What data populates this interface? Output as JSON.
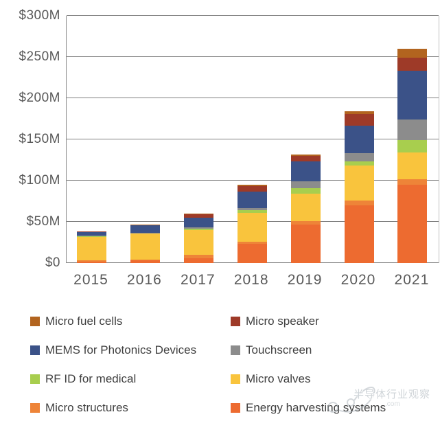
{
  "chart_data": {
    "type": "bar",
    "stacked": true,
    "title": "",
    "xlabel": "",
    "ylabel": "",
    "unit": "$M",
    "categories": [
      "2015",
      "2016",
      "2017",
      "2018",
      "2019",
      "2020",
      "2021"
    ],
    "ylim": [
      0,
      300
    ],
    "yticks": [
      {
        "value": 0,
        "label": "$0"
      },
      {
        "value": 50,
        "label": "$50M"
      },
      {
        "value": 100,
        "label": "$100M"
      },
      {
        "value": 150,
        "label": "$150M"
      },
      {
        "value": 200,
        "label": "$200M"
      },
      {
        "value": 250,
        "label": "$250M"
      },
      {
        "value": 300,
        "label": "$300M"
      }
    ],
    "grid": true,
    "stack_order_bottom_to_top": [
      "Energy harvesting systems",
      "Micro structures",
      "Micro valves",
      "RF ID for medical",
      "Touchscreen",
      "MEMS for Photonics Devices",
      "Micro speaker",
      "Micro fuel cells"
    ],
    "series": [
      {
        "name": "Energy harvesting systems",
        "color": "#ED6B30",
        "values": [
          2,
          3,
          6,
          23,
          47,
          70,
          95
        ]
      },
      {
        "name": "Micro structures",
        "color": "#EE8438",
        "values": [
          1,
          1,
          4,
          3,
          4,
          6,
          7
        ]
      },
      {
        "name": "Micro valves",
        "color": "#F9C43D",
        "values": [
          29,
          32,
          30,
          35,
          33,
          42,
          32
        ]
      },
      {
        "name": "RF ID for medical",
        "color": "#A8CE4E",
        "values": [
          0.5,
          0.5,
          2,
          3,
          7,
          5,
          15
        ]
      },
      {
        "name": "Touchscreen",
        "color": "#8C8C8C",
        "values": [
          0.5,
          0.5,
          1,
          3,
          8,
          10,
          25
        ]
      },
      {
        "name": "MEMS for Photonics Devices",
        "color": "#3B5288",
        "values": [
          4.5,
          9,
          12,
          20,
          24,
          34,
          59
        ]
      },
      {
        "name": "Micro speaker",
        "color": "#9E3A28",
        "values": [
          0.5,
          0.5,
          4,
          6,
          7,
          14,
          16
        ]
      },
      {
        "name": "Micro fuel cells",
        "color": "#B2641F",
        "values": [
          0,
          0.5,
          1,
          2,
          2,
          3,
          11
        ]
      }
    ],
    "totals": [
      38,
      47,
      60,
      95,
      132,
      184,
      260
    ],
    "legend_position": "bottom"
  },
  "legend": {
    "items": [
      {
        "label": "Micro fuel cells",
        "color": "#B2641F"
      },
      {
        "label": "Micro speaker",
        "color": "#9E3A28"
      },
      {
        "label": "MEMS for Photonics Devices",
        "color": "#3B5288"
      },
      {
        "label": "Touchscreen",
        "color": "#8C8C8C"
      },
      {
        "label": "RF ID for medical",
        "color": "#A8CE4E"
      },
      {
        "label": "Micro valves",
        "color": "#F9C43D"
      },
      {
        "label": "Micro structures",
        "color": "#EE8438"
      },
      {
        "label": "Energy harvesting systems",
        "color": "#ED6B30"
      }
    ]
  },
  "watermark": {
    "text": "半导体行业观察",
    "suffix": ".com"
  }
}
